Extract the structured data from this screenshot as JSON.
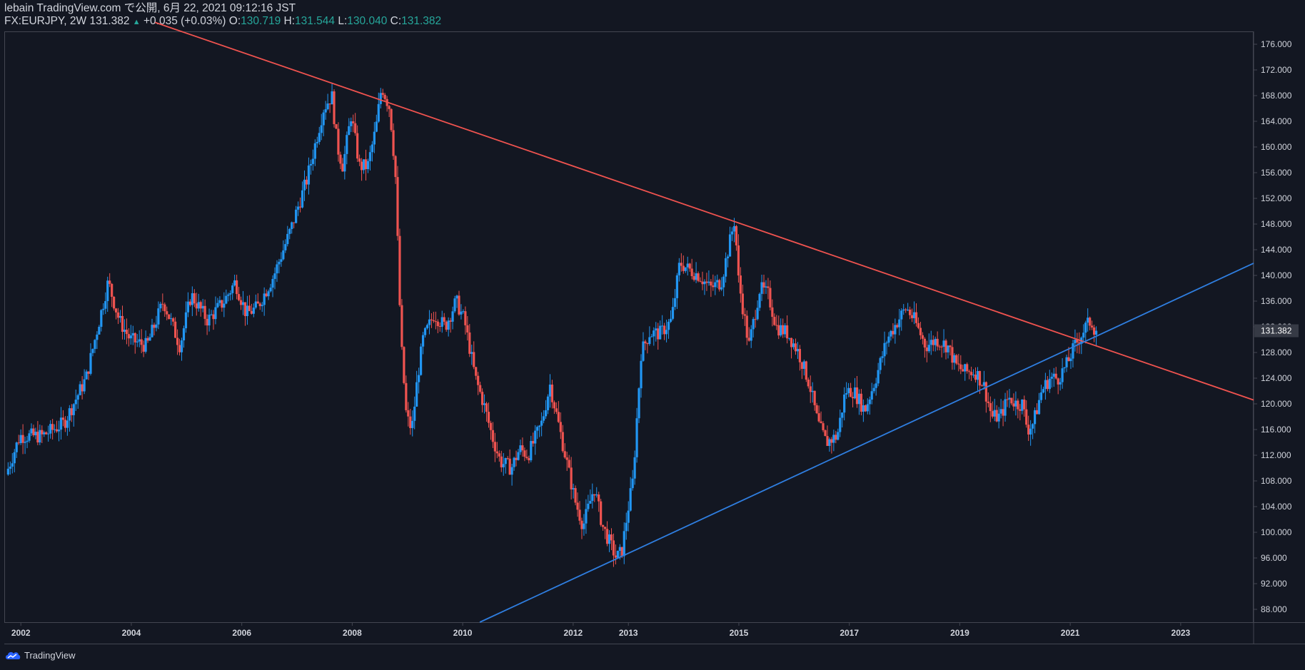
{
  "header": {
    "published": "lebain TradingView.com で公開, 6月 22, 2021 09:12:16 JST",
    "symbol": "FX:EURJPY, 2W",
    "last": "131.382",
    "change": "+0.035 (+0.03%)",
    "o_label": "O:",
    "o_value": "130.719",
    "h_label": "H:",
    "h_value": "131.544",
    "l_label": "L:",
    "l_value": "130.040",
    "c_label": "C:",
    "c_value": "131.382"
  },
  "footer": {
    "brand": "TradingView"
  },
  "colors": {
    "background": "#131722",
    "up": "#2196f3",
    "down": "#ef5350",
    "resistance_line": "#f0534f",
    "support_line": "#2f7ee0",
    "axis_text": "#d1d4dc",
    "price_tag_bg": "#363a45"
  },
  "chart_data": {
    "type": "candlestick",
    "symbol": "FX:EURJPY",
    "interval": "2W",
    "y_axis": {
      "ylim": [
        86.0,
        178.0
      ],
      "ticks": [
        "88.000",
        "92.000",
        "96.000",
        "100.000",
        "104.000",
        "108.000",
        "112.000",
        "116.000",
        "120.000",
        "124.000",
        "128.000",
        "132.000",
        "136.000",
        "140.000",
        "144.000",
        "148.000",
        "152.000",
        "156.000",
        "160.000",
        "164.000",
        "168.000",
        "172.000",
        "176.000"
      ],
      "last_price_label": "131.382",
      "last_price": 131.382
    },
    "x_axis": {
      "ticks": [
        {
          "label": "2002",
          "date": 2002.0
        },
        {
          "label": "2004",
          "date": 2004.0
        },
        {
          "label": "2006",
          "date": 2006.0
        },
        {
          "label": "2008",
          "date": 2008.0
        },
        {
          "label": "2010",
          "date": 2010.0
        },
        {
          "label": "2012",
          "date": 2012.0
        },
        {
          "label": "2013",
          "date": 2013.0
        },
        {
          "label": "2015",
          "date": 2015.0
        },
        {
          "label": "2017",
          "date": 2017.0
        },
        {
          "label": "2019",
          "date": 2019.0
        },
        {
          "label": "2021",
          "date": 2021.0
        },
        {
          "label": "2023",
          "date": 2023.0
        }
      ]
    },
    "price_path": [
      [
        2001.75,
        109
      ],
      [
        2002.0,
        115
      ],
      [
        2002.4,
        115
      ],
      [
        2002.8,
        117
      ],
      [
        2003.2,
        124
      ],
      [
        2003.6,
        139
      ],
      [
        2003.8,
        133
      ],
      [
        2004.0,
        130
      ],
      [
        2004.3,
        129
      ],
      [
        2004.6,
        136
      ],
      [
        2004.9,
        129
      ],
      [
        2005.1,
        137
      ],
      [
        2005.4,
        133
      ],
      [
        2005.7,
        136
      ],
      [
        2005.9,
        139
      ],
      [
        2006.1,
        134
      ],
      [
        2006.3,
        135
      ],
      [
        2006.6,
        140
      ],
      [
        2006.9,
        147
      ],
      [
        2007.2,
        155
      ],
      [
        2007.5,
        166
      ],
      [
        2007.65,
        168
      ],
      [
        2007.75,
        160
      ],
      [
        2007.85,
        157
      ],
      [
        2008.0,
        165
      ],
      [
        2008.15,
        157
      ],
      [
        2008.3,
        157
      ],
      [
        2008.45,
        163
      ],
      [
        2008.55,
        169.5
      ],
      [
        2008.7,
        166
      ],
      [
        2008.8,
        156
      ],
      [
        2008.9,
        130
      ],
      [
        2009.0,
        118
      ],
      [
        2009.1,
        116
      ],
      [
        2009.2,
        124
      ],
      [
        2009.3,
        130
      ],
      [
        2009.5,
        134
      ],
      [
        2009.7,
        132
      ],
      [
        2009.9,
        136
      ],
      [
        2010.05,
        133
      ],
      [
        2010.25,
        124
      ],
      [
        2010.4,
        120
      ],
      [
        2010.55,
        115
      ],
      [
        2010.7,
        111
      ],
      [
        2010.9,
        110
      ],
      [
        2011.05,
        113
      ],
      [
        2011.2,
        112
      ],
      [
        2011.45,
        117
      ],
      [
        2011.6,
        123
      ],
      [
        2011.75,
        117
      ],
      [
        2011.9,
        111
      ],
      [
        2012.05,
        105
      ],
      [
        2012.2,
        101
      ],
      [
        2012.4,
        107
      ],
      [
        2012.55,
        101
      ],
      [
        2012.65,
        99
      ],
      [
        2012.8,
        96
      ],
      [
        2012.9,
        97
      ],
      [
        2013.0,
        103
      ],
      [
        2013.1,
        108
      ],
      [
        2013.25,
        128
      ],
      [
        2013.4,
        131
      ],
      [
        2013.6,
        131
      ],
      [
        2013.8,
        133
      ],
      [
        2013.95,
        142
      ],
      [
        2014.1,
        141
      ],
      [
        2014.3,
        140
      ],
      [
        2014.5,
        138
      ],
      [
        2014.7,
        139
      ],
      [
        2014.85,
        145
      ],
      [
        2014.95,
        149
      ],
      [
        2015.0,
        140
      ],
      [
        2015.2,
        129
      ],
      [
        2015.4,
        138
      ],
      [
        2015.55,
        137
      ],
      [
        2015.7,
        132
      ],
      [
        2015.9,
        131
      ],
      [
        2016.1,
        128
      ],
      [
        2016.3,
        123
      ],
      [
        2016.45,
        117
      ],
      [
        2016.6,
        114
      ],
      [
        2016.8,
        115
      ],
      [
        2016.95,
        122
      ],
      [
        2017.1,
        122
      ],
      [
        2017.3,
        119
      ],
      [
        2017.5,
        124
      ],
      [
        2017.7,
        130
      ],
      [
        2017.9,
        133
      ],
      [
        2018.05,
        135
      ],
      [
        2018.2,
        133
      ],
      [
        2018.4,
        129
      ],
      [
        2018.6,
        130
      ],
      [
        2018.8,
        129
      ],
      [
        2018.95,
        126
      ],
      [
        2019.1,
        125
      ],
      [
        2019.3,
        125
      ],
      [
        2019.45,
        123
      ],
      [
        2019.6,
        118
      ],
      [
        2019.75,
        118
      ],
      [
        2019.9,
        121
      ],
      [
        2020.05,
        120
      ],
      [
        2020.15,
        120
      ],
      [
        2020.25,
        116
      ],
      [
        2020.35,
        117
      ],
      [
        2020.5,
        122
      ],
      [
        2020.65,
        124
      ],
      [
        2020.8,
        124
      ],
      [
        2020.95,
        126
      ],
      [
        2021.1,
        129
      ],
      [
        2021.3,
        132
      ],
      [
        2021.4,
        133
      ],
      [
        2021.47,
        131.38
      ]
    ],
    "trendlines": [
      {
        "name": "resistance",
        "color": "#f0534f",
        "from": {
          "date": 2004.43,
          "price": 179.4
        },
        "to": {
          "date": 2024.32,
          "price": 120.6
        }
      },
      {
        "name": "support",
        "color": "#2f7ee0",
        "from": {
          "date": 2010.31,
          "price": 86.0
        },
        "to": {
          "date": 2024.32,
          "price": 141.9
        }
      }
    ]
  }
}
